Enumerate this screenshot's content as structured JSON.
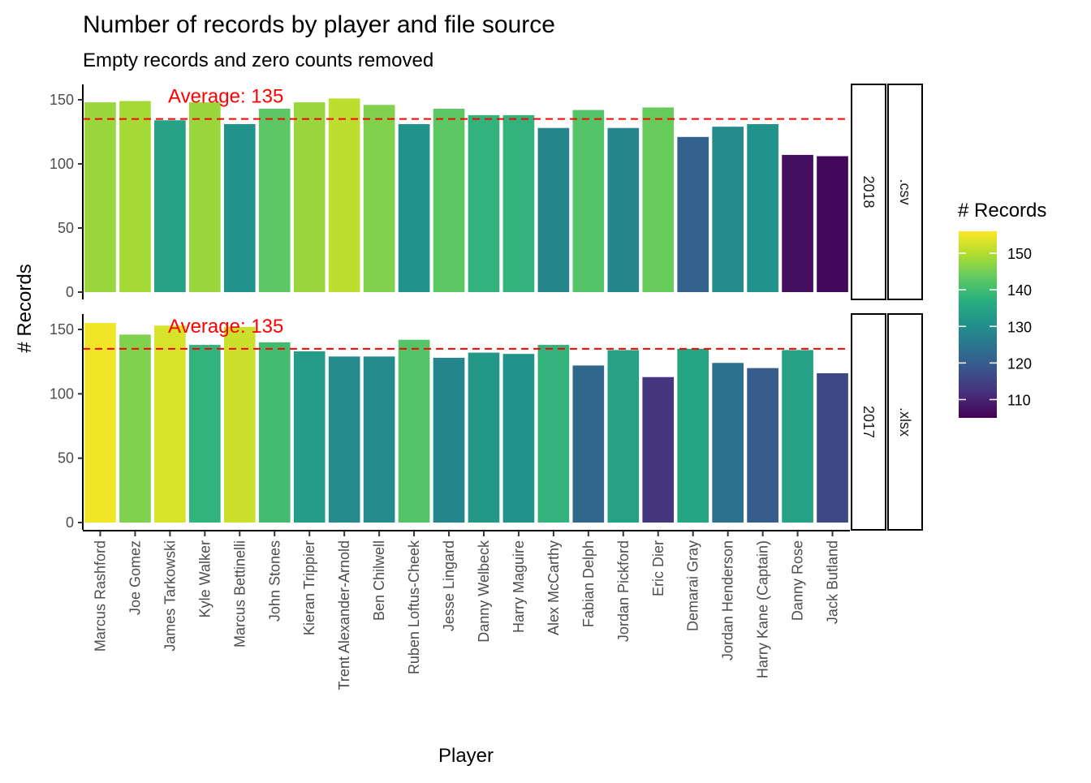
{
  "chart_data": {
    "type": "bar",
    "title": "Number of records by player and file source",
    "subtitle": "Empty records and zero counts removed",
    "xlabel": "Player",
    "ylabel": "# Records",
    "ylim": [
      0,
      162
    ],
    "y_ticks": [
      0,
      50,
      100,
      150
    ],
    "grid": false,
    "categories": [
      "Marcus Rashford",
      "Joe Gomez",
      "James Tarkowski",
      "Kyle Walker",
      "Marcus Bettinelli",
      "John Stones",
      "Kieran Trippier",
      "Trent Alexander-Arnold",
      "Ben Chilwell",
      "Ruben Loftus-Cheek",
      "Jesse Lingard",
      "Danny Welbeck",
      "Harry Maguire",
      "Alex McCarthy",
      "Fabian Delph",
      "Jordan Pickford",
      "Eric Dier",
      "Demarai Gray",
      "Jordan Henderson",
      "Harry Kane (Captain)",
      "Danny Rose",
      "Jack Butland"
    ],
    "panels": [
      {
        "strip_year": "2018",
        "strip_ext": ".csv",
        "values": [
          148,
          149,
          134,
          148,
          131,
          143,
          148,
          151,
          146,
          131,
          143,
          138,
          138,
          128,
          142,
          128,
          144,
          121,
          129,
          131,
          107,
          106
        ],
        "average": 135,
        "average_label": "Average: 135"
      },
      {
        "strip_year": "2017",
        "strip_ext": ".xlsx",
        "values": [
          155,
          146,
          153,
          138,
          152,
          140,
          133,
          129,
          129,
          142,
          128,
          132,
          131,
          138,
          122,
          134,
          113,
          135,
          124,
          120,
          134,
          116
        ],
        "average": 135,
        "average_label": "Average: 135"
      }
    ],
    "fill_scale": {
      "title": "# Records",
      "min": 105,
      "max": 156,
      "ticks": [
        110,
        120,
        130,
        140,
        150
      ],
      "palette": "viridis"
    },
    "reference_line_color": "#ff0000",
    "legend_position": "right"
  }
}
